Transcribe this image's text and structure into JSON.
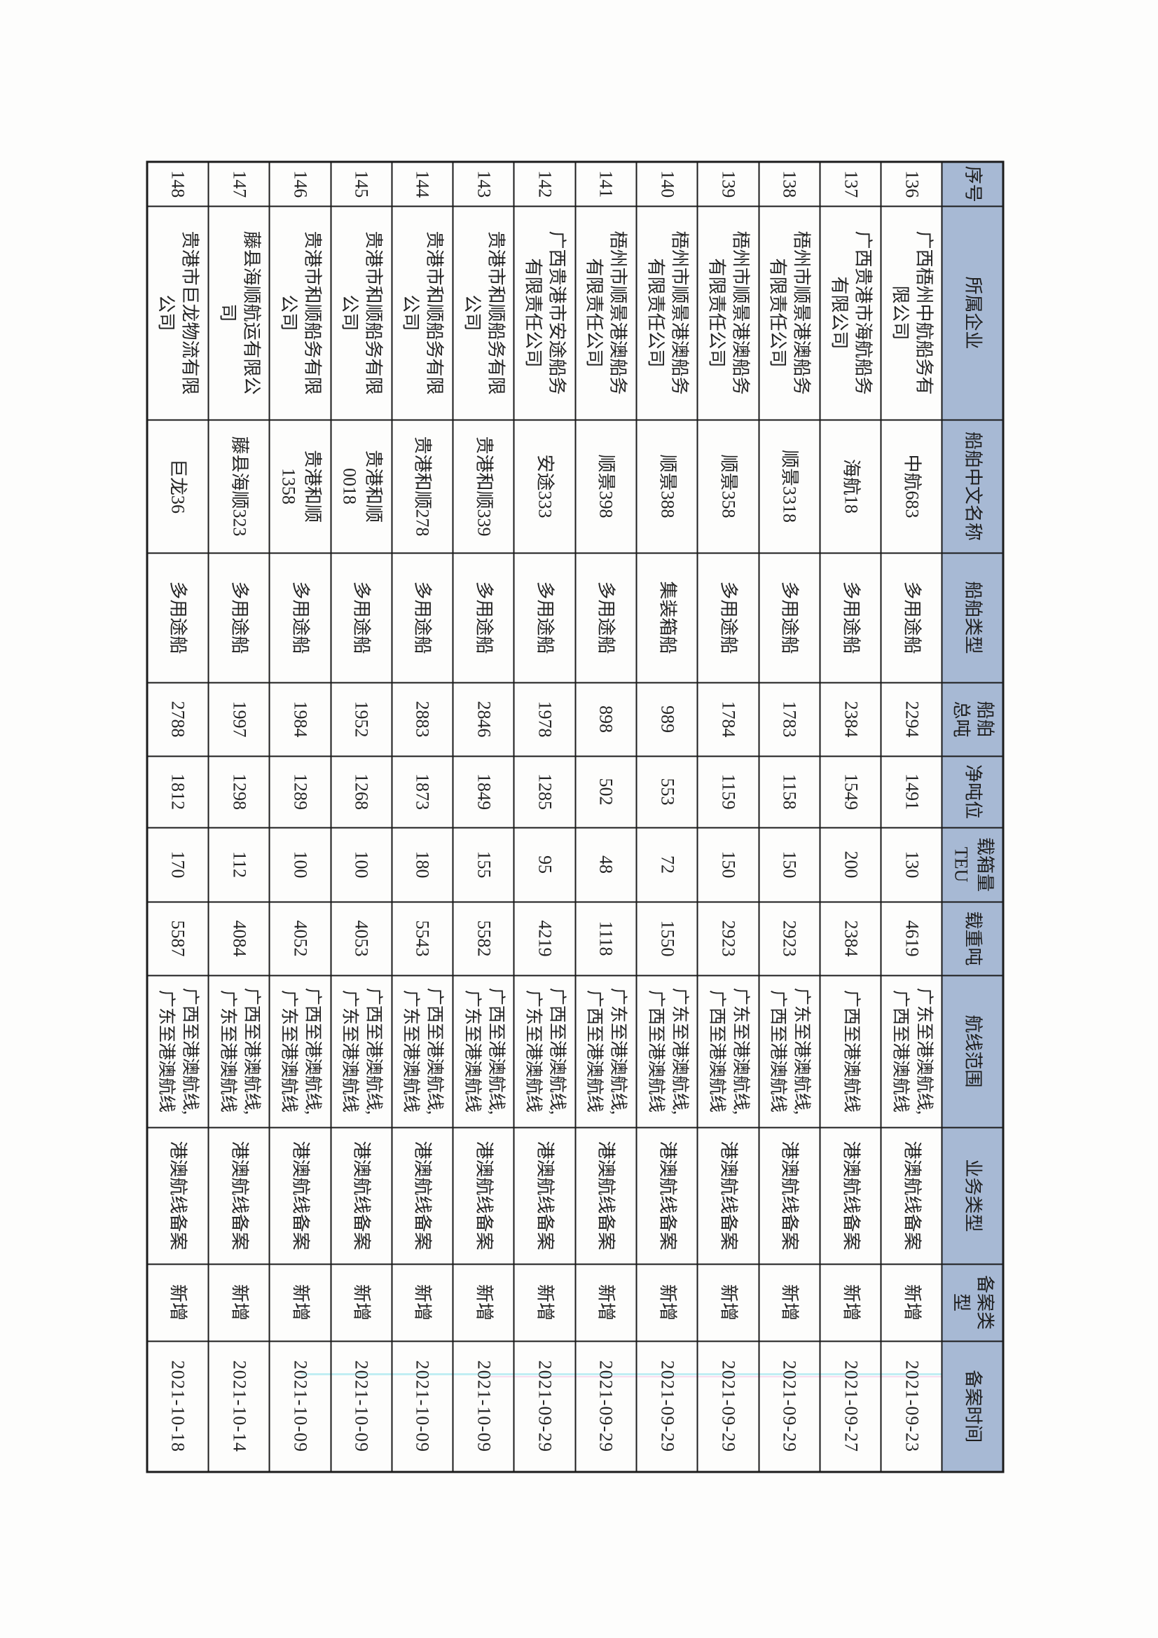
{
  "table": {
    "header_color": "#a7b9d4",
    "columns": [
      "序号",
      "所属企业",
      "船舶中文名称",
      "船舶类型",
      "船舶\n总吨",
      "净吨位",
      "载箱量\nTEU",
      "载重吨",
      "航线范围",
      "业务类型",
      "备案类\n型",
      "备案时间"
    ],
    "rows": [
      [
        "136",
        "广西梧州中航船务有\n限公司",
        "中航683",
        "多用途船",
        "2294",
        "1491",
        "130",
        "4619",
        "广东至港澳航线,\n广西至港澳航线",
        "港澳航线备案",
        "新增",
        "2021-09-23"
      ],
      [
        "137",
        "广西贵港市海航船务\n有限公司",
        "海航18",
        "多用途船",
        "2384",
        "1549",
        "200",
        "2384",
        "广西至港澳航线",
        "港澳航线备案",
        "新增",
        "2021-09-27"
      ],
      [
        "138",
        "梧州市顺景港澳船务\n有限责任公司",
        "顺景3318",
        "多用途船",
        "1783",
        "1158",
        "150",
        "2923",
        "广东至港澳航线,\n广西至港澳航线",
        "港澳航线备案",
        "新增",
        "2021-09-29"
      ],
      [
        "139",
        "梧州市顺景港澳船务\n有限责任公司",
        "顺景358",
        "多用途船",
        "1784",
        "1159",
        "150",
        "2923",
        "广东至港澳航线,\n广西至港澳航线",
        "港澳航线备案",
        "新增",
        "2021-09-29"
      ],
      [
        "140",
        "梧州市顺景港澳船务\n有限责任公司",
        "顺景388",
        "集装箱船",
        "989",
        "553",
        "72",
        "1550",
        "广东至港澳航线,\n广西至港澳航线",
        "港澳航线备案",
        "新增",
        "2021-09-29"
      ],
      [
        "141",
        "梧州市顺景港澳船务\n有限责任公司",
        "顺景398",
        "多用途船",
        "898",
        "502",
        "48",
        "1118",
        "广东至港澳航线,\n广西至港澳航线",
        "港澳航线备案",
        "新增",
        "2021-09-29"
      ],
      [
        "142",
        "广西贵港市安途船务\n有限责任公司",
        "安途333",
        "多用途船",
        "1978",
        "1285",
        "95",
        "4219",
        "广西至港澳航线,\n广东至港澳航线",
        "港澳航线备案",
        "新增",
        "2021-09-29"
      ],
      [
        "143",
        "贵港市和顺船务有限\n公司",
        "贵港和顺339",
        "多用途船",
        "2846",
        "1849",
        "155",
        "5582",
        "广西至港澳航线,\n广东至港澳航线",
        "港澳航线备案",
        "新增",
        "2021-10-09"
      ],
      [
        "144",
        "贵港市和顺船务有限\n公司",
        "贵港和顺278",
        "多用途船",
        "2883",
        "1873",
        "180",
        "5543",
        "广西至港澳航线,\n广东至港澳航线",
        "港澳航线备案",
        "新增",
        "2021-10-09"
      ],
      [
        "145",
        "贵港市和顺船务有限\n公司",
        "贵港和顺\n0018",
        "多用途船",
        "1952",
        "1268",
        "100",
        "4053",
        "广西至港澳航线,\n广东至港澳航线",
        "港澳航线备案",
        "新增",
        "2021-10-09"
      ],
      [
        "146",
        "贵港市和顺船务有限\n公司",
        "贵港和顺\n1358",
        "多用途船",
        "1984",
        "1289",
        "100",
        "4052",
        "广西至港澳航线,\n广东至港澳航线",
        "港澳航线备案",
        "新增",
        "2021-10-09"
      ],
      [
        "147",
        "藤县海顺航运有限公\n司",
        "藤县海顺323",
        "多用途船",
        "1997",
        "1298",
        "112",
        "4084",
        "广西至港澳航线,\n广东至港澳航线",
        "港澳航线备案",
        "新增",
        "2021-10-14"
      ],
      [
        "148",
        "贵港市巨龙物流有限\n公司",
        "巨龙36",
        "多用途船",
        "2788",
        "1812",
        "170",
        "5587",
        "广西至港澳航线,\n广东至港澳航线",
        "港澳航线备案",
        "新增",
        "2021-10-18"
      ]
    ]
  }
}
